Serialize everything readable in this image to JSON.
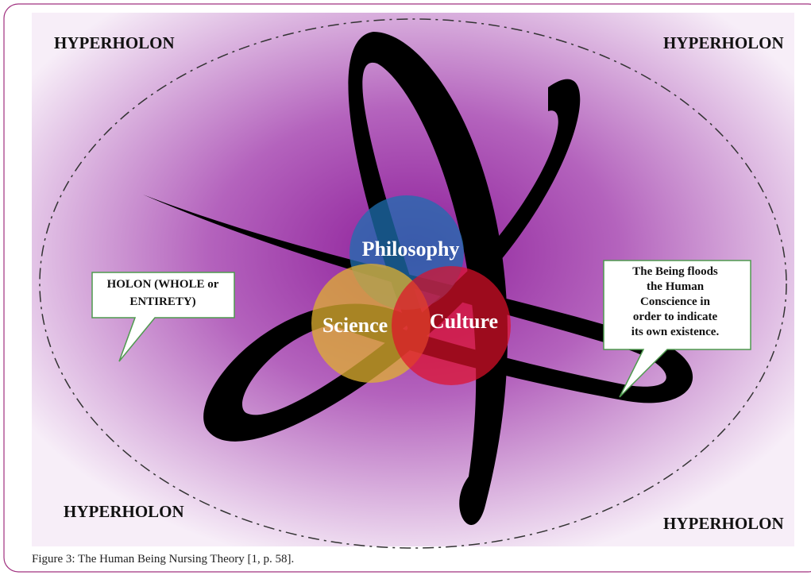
{
  "corners": {
    "top_left": "HYPERHOLON",
    "top_right": "HYPERHOLON",
    "bottom_left": "HYPERHOLON",
    "bottom_right": "HYPERHOLON"
  },
  "circles": [
    {
      "label": "Philosophy"
    },
    {
      "label": "Science"
    },
    {
      "label": "Culture"
    }
  ],
  "callouts": {
    "left": [
      "HOLON (WHOLE or",
      "ENTIRETY)"
    ],
    "right": [
      "The Being floods",
      "the Human",
      "Conscience in",
      "order to indicate",
      "its own existence."
    ]
  },
  "caption": "Figure 3:  The Human Being Nursing Theory [1, p. 58]."
}
